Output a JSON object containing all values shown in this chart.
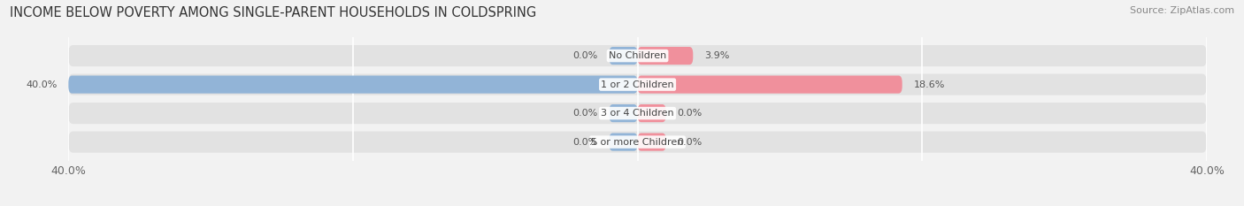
{
  "title": "INCOME BELOW POVERTY AMONG SINGLE-PARENT HOUSEHOLDS IN COLDSPRING",
  "source": "Source: ZipAtlas.com",
  "categories": [
    "No Children",
    "1 or 2 Children",
    "3 or 4 Children",
    "5 or more Children"
  ],
  "single_father": [
    0.0,
    40.0,
    0.0,
    0.0
  ],
  "single_mother": [
    3.9,
    18.6,
    0.0,
    0.0
  ],
  "father_color": "#92b4d7",
  "mother_color": "#f0909c",
  "bar_height": 0.62,
  "xlim": [
    -40,
    40
  ],
  "background_color": "#f2f2f2",
  "bar_background_color": "#e2e2e2",
  "title_fontsize": 10.5,
  "source_fontsize": 8,
  "label_fontsize": 8,
  "legend_fontsize": 9,
  "axis_label_fontsize": 9,
  "grid_color": "#ffffff",
  "min_stub": 2.0
}
